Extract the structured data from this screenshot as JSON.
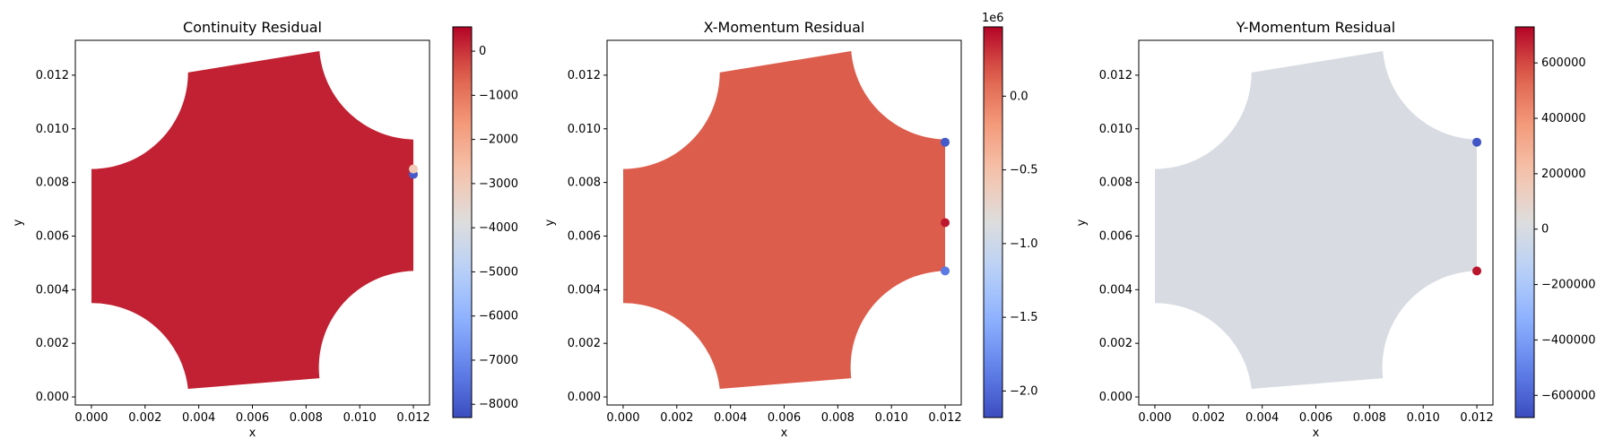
{
  "chart_data": [
    {
      "type": "scatter",
      "title": "Continuity Residual",
      "xlabel": "x",
      "ylabel": "y",
      "xlim": [
        -0.0006,
        0.0126
      ],
      "ylim": [
        -0.0003,
        0.0133
      ],
      "xticks": [
        "0.000",
        "0.002",
        "0.004",
        "0.006",
        "0.008",
        "0.010",
        "0.012"
      ],
      "yticks": [
        "0.000",
        "0.002",
        "0.004",
        "0.006",
        "0.008",
        "0.010",
        "0.012"
      ],
      "colorbar": {
        "cmap": "coolwarm",
        "range": [
          -8300,
          550
        ],
        "ticks": [
          "0",
          "−1000",
          "−2000",
          "−3000",
          "−4000",
          "−5000",
          "−6000",
          "−7000",
          "−8000"
        ],
        "exponent_label": ""
      },
      "background_value": 200,
      "hotspots": [
        {
          "x": 0.012,
          "y": 0.0083,
          "value": -8000
        },
        {
          "x": 0.012,
          "y": 0.0085,
          "value": -3000
        }
      ],
      "grid": false
    },
    {
      "type": "scatter",
      "title": "X-Momentum Residual",
      "xlabel": "x",
      "ylabel": "y",
      "xlim": [
        -0.0006,
        0.0126
      ],
      "ylim": [
        -0.0003,
        0.0133
      ],
      "xticks": [
        "0.000",
        "0.002",
        "0.004",
        "0.006",
        "0.008",
        "0.010",
        "0.012"
      ],
      "yticks": [
        "0.000",
        "0.002",
        "0.004",
        "0.006",
        "0.008",
        "0.010",
        "0.012"
      ],
      "colorbar": {
        "cmap": "coolwarm",
        "range": [
          -2.18,
          0.47
        ],
        "ticks": [
          "0.0",
          "−0.5",
          "−1.0",
          "−1.5",
          "−2.0"
        ],
        "exponent_label": "1e6"
      },
      "background_value": 0.15,
      "hotspots": [
        {
          "x": 0.012,
          "y": 0.0095,
          "value": -2.1
        },
        {
          "x": 0.012,
          "y": 0.0047,
          "value": -1.9
        },
        {
          "x": 0.012,
          "y": 0.0065,
          "value": 0.4
        }
      ],
      "grid": false
    },
    {
      "type": "scatter",
      "title": "Y-Momentum Residual",
      "xlabel": "x",
      "ylabel": "y",
      "xlim": [
        -0.0006,
        0.0126
      ],
      "ylim": [
        -0.0003,
        0.0133
      ],
      "xticks": [
        "0.000",
        "0.002",
        "0.004",
        "0.006",
        "0.008",
        "0.010",
        "0.012"
      ],
      "yticks": [
        "0.000",
        "0.002",
        "0.004",
        "0.006",
        "0.008",
        "0.010",
        "0.012"
      ],
      "colorbar": {
        "cmap": "coolwarm",
        "range": [
          -680000,
          730000
        ],
        "ticks": [
          "600000",
          "400000",
          "200000",
          "0",
          "−200000",
          "−400000",
          "−600000"
        ],
        "exponent_label": ""
      },
      "background_value": 0,
      "hotspots": [
        {
          "x": 0.012,
          "y": 0.0095,
          "value": -650000
        },
        {
          "x": 0.012,
          "y": 0.0047,
          "value": 700000
        }
      ],
      "grid": false
    }
  ]
}
